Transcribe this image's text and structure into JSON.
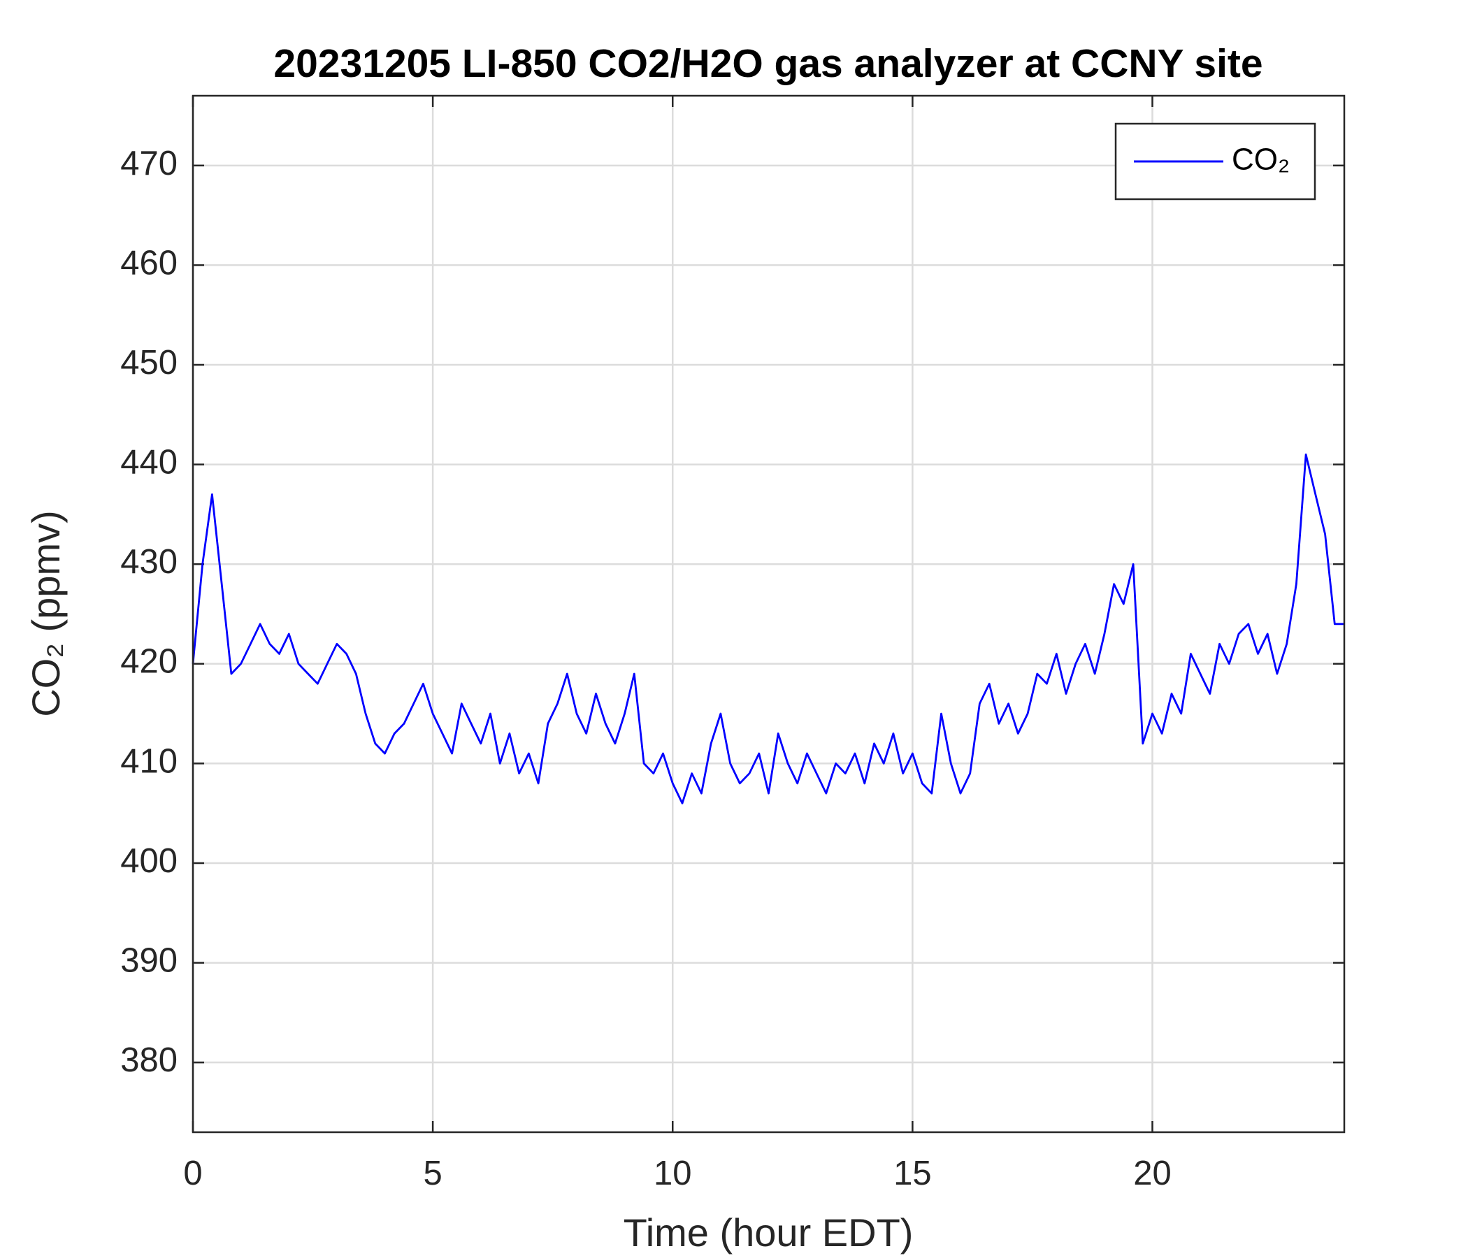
{
  "chart_data": {
    "type": "line",
    "title": "20231205 LI-850 CO2/H2O gas analyzer at CCNY site",
    "x_label": "Time (hour EDT)",
    "y_label": "CO₂ (ppmv)",
    "xlim": [
      0,
      24
    ],
    "xticks": [
      0,
      5,
      10,
      15,
      20
    ],
    "ylim": [
      373,
      477
    ],
    "yticks": [
      380,
      390,
      400,
      410,
      420,
      430,
      440,
      450,
      460,
      470
    ],
    "grid": true,
    "legend": "upper right",
    "x": [
      0,
      0.2,
      0.4,
      0.6,
      0.8,
      1,
      1.2,
      1.4,
      1.6,
      1.8,
      2,
      2.2,
      2.4,
      2.6,
      2.8,
      3,
      3.2,
      3.4,
      3.6,
      3.8,
      4,
      4.2,
      4.4,
      4.6,
      4.8,
      5,
      5.2,
      5.4,
      5.6,
      5.8,
      6,
      6.2,
      6.4,
      6.6,
      6.8,
      7,
      7.2,
      7.4,
      7.6,
      7.8,
      8,
      8.2,
      8.4,
      8.6,
      8.8,
      9,
      9.2,
      9.4,
      9.6,
      9.8,
      10,
      10.2,
      10.4,
      10.6,
      10.8,
      11,
      11.2,
      11.4,
      11.6,
      11.8,
      12,
      12.2,
      12.4,
      12.6,
      12.8,
      13,
      13.2,
      13.4,
      13.6,
      13.8,
      14,
      14.2,
      14.4,
      14.6,
      14.8,
      15,
      15.2,
      15.4,
      15.6,
      15.8,
      16,
      16.2,
      16.4,
      16.6,
      16.8,
      17,
      17.2,
      17.4,
      17.6,
      17.8,
      18,
      18.2,
      18.4,
      18.6,
      18.8,
      19,
      19.2,
      19.4,
      19.6,
      19.8,
      20,
      20.2,
      20.4,
      20.6,
      20.8,
      21,
      21.2,
      21.4,
      21.6,
      21.8,
      22,
      22.2,
      22.4,
      22.6,
      22.8,
      23,
      23.2,
      23.4,
      23.6,
      23.8,
      24
    ],
    "series": [
      {
        "name": "CO₂",
        "color": "#0000ff",
        "values": [
          420,
          430,
          437,
          428,
          419,
          420,
          422,
          424,
          422,
          421,
          423,
          420,
          419,
          418,
          420,
          422,
          421,
          419,
          415,
          412,
          411,
          413,
          414,
          416,
          418,
          415,
          413,
          411,
          416,
          414,
          412,
          415,
          410,
          413,
          409,
          411,
          408,
          414,
          416,
          419,
          415,
          413,
          417,
          414,
          412,
          415,
          419,
          410,
          409,
          411,
          408,
          406,
          409,
          407,
          412,
          415,
          410,
          408,
          409,
          411,
          407,
          413,
          410,
          408,
          411,
          409,
          407,
          410,
          409,
          411,
          408,
          412,
          410,
          413,
          409,
          411,
          408,
          407,
          415,
          410,
          407,
          409,
          416,
          418,
          414,
          416,
          413,
          415,
          419,
          418,
          421,
          417,
          420,
          422,
          419,
          423,
          428,
          426,
          430,
          412,
          415,
          413,
          417,
          415,
          421,
          419,
          417,
          422,
          420,
          423,
          424,
          421,
          423,
          419,
          422,
          428,
          441,
          437,
          433,
          424,
          424
        ]
      }
    ]
  }
}
